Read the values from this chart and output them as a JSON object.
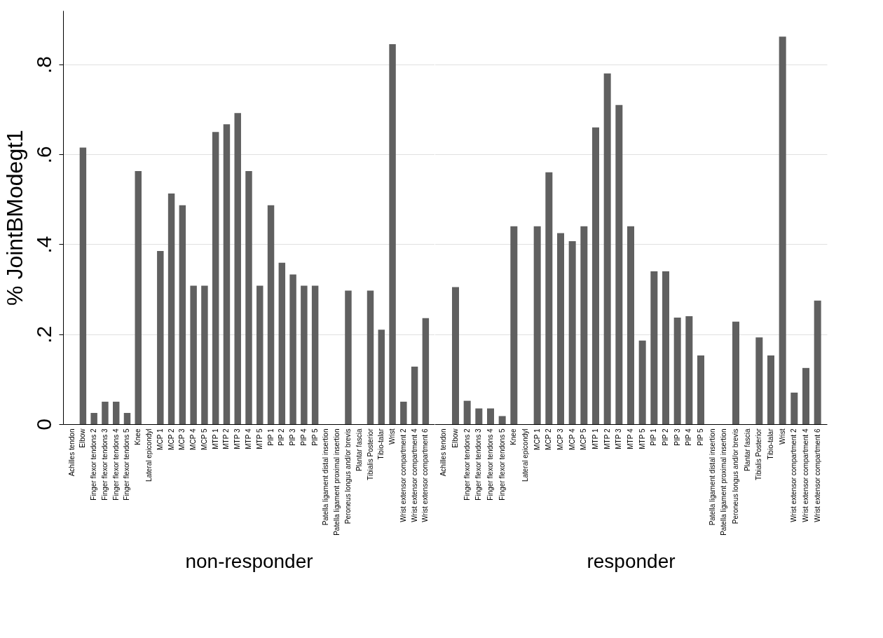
{
  "chart_data": [
    {
      "type": "bar",
      "xlabel": "non-responder",
      "ylabel": "% JointBModegt1",
      "categories": [
        "Achilles tendon",
        "Elbow",
        "Finger flexor tendons 2",
        "Finger flexor tendons 3",
        "Finger flexor tendons 4",
        "Finger flexor tendons 5",
        "Knee",
        "Lateral epicondyl",
        "MCP 1",
        "MCP 2",
        "MCP 3",
        "MCP 4",
        "MCP 5",
        "MTP 1",
        "MTP 2",
        "MTP 3",
        "MTP 4",
        "MTP 5",
        "PIP 1",
        "PIP 2",
        "PIP 3",
        "PIP 4",
        "PIP 5",
        "Patella ligament distal insertion",
        "Patella ligament proximal insertion",
        "Peroneus longus and/or brevis",
        "Plantar fascia",
        "Tibialis Posterior",
        "Tibio-talar",
        "Wrist",
        "Wrist extensor compartment 2",
        "Wrist extensor compartment 4",
        "Wrist extensor compartment 6"
      ],
      "values": [
        0,
        0.615,
        0.025,
        0.05,
        0.05,
        0.025,
        0.563,
        0,
        0.385,
        0.513,
        0.487,
        0.308,
        0.308,
        0.65,
        0.667,
        0.692,
        0.563,
        0.308,
        0.487,
        0.359,
        0.333,
        0.308,
        0.308,
        0,
        0,
        0.297,
        0,
        0.297,
        0.21,
        0.845,
        0.05,
        0.128,
        0.236
      ],
      "color": "#606060",
      "ylim": [
        0,
        0.92
      ],
      "yticks": [
        0,
        {
          "value": 0.2,
          "label": ".2"
        },
        {
          "value": 0.4,
          "label": ".4"
        },
        {
          "value": 0.6,
          "label": ".6"
        },
        {
          "value": 0.8,
          "label": ".8"
        }
      ],
      "grid": "y"
    },
    {
      "type": "bar",
      "xlabel": "responder",
      "categories": [
        "Achilles tendon",
        "Elbow",
        "Finger flexor tendons 2",
        "Finger flexor tendons 3",
        "Finger flexor tendons 4",
        "Finger flexor tendons 5",
        "Knee",
        "Lateral epicondyl",
        "MCP 1",
        "MCP 2",
        "MCP 3",
        "MCP 4",
        "MCP 5",
        "MTP 1",
        "MTP 2",
        "MTP 3",
        "MTP 4",
        "MTP 5",
        "PIP 1",
        "PIP 2",
        "PIP 3",
        "PIP 4",
        "PIP 5",
        "Patella ligament distal insertion",
        "Patella ligament proximal insertion",
        "Peroneus longus and/or brevis",
        "Plantar fascia",
        "Tibialis Posterior",
        "Tibio-talar",
        "Wrist",
        "Wrist extensor compartment 2",
        "Wrist extensor compartment 4",
        "Wrist extensor compartment 6"
      ],
      "values": [
        0,
        0.305,
        0.052,
        0.035,
        0.035,
        0.018,
        0.44,
        0,
        0.44,
        0.56,
        0.425,
        0.407,
        0.44,
        0.66,
        0.78,
        0.71,
        0.44,
        0.186,
        0.34,
        0.34,
        0.237,
        0.24,
        0.153,
        0,
        0,
        0.228,
        0,
        0.193,
        0.153,
        0.862,
        0.07,
        0.125,
        0.275
      ],
      "color": "#606060",
      "ylim": [
        0,
        0.92
      ],
      "yticks": [
        0,
        0.2,
        0.4,
        0.6,
        0.8
      ],
      "grid": "y",
      "tick_labels": "x"
    }
  ]
}
